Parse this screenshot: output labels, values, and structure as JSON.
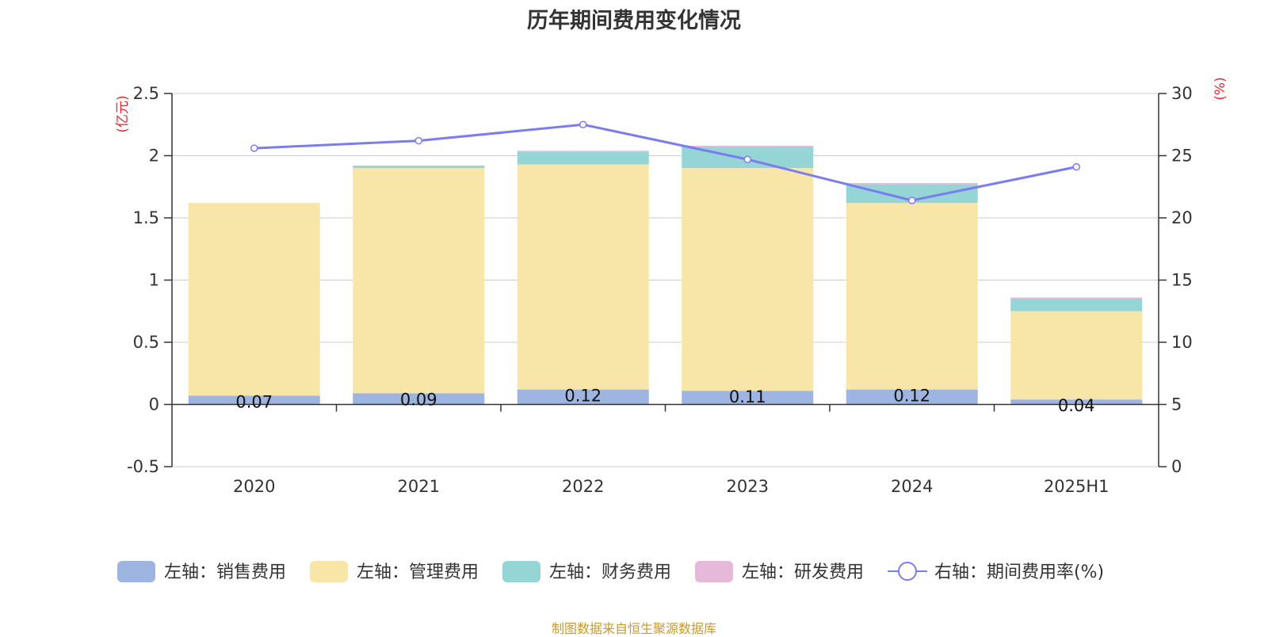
{
  "chart_data": {
    "type": "bar",
    "title": "历年期间费用变化情况",
    "categories": [
      "2020",
      "2021",
      "2022",
      "2023",
      "2024",
      "2025H1"
    ],
    "left_axis": {
      "unit": "(亿元)",
      "ylim": [
        -0.5,
        2.5
      ],
      "ticks": [
        -0.5,
        0,
        0.5,
        1,
        1.5,
        2,
        2.5
      ],
      "tick_labels": [
        "-0.5",
        "0",
        "0.5",
        "1",
        "1.5",
        "2",
        "2.5"
      ]
    },
    "right_axis": {
      "unit": "(%)",
      "ylim": [
        0,
        30
      ],
      "ticks": [
        0,
        5,
        10,
        15,
        20,
        25,
        30
      ],
      "tick_labels": [
        "0",
        "5",
        "10",
        "15",
        "20",
        "25",
        "30"
      ]
    },
    "series": [
      {
        "name": "左轴：销售费用",
        "axis": "left",
        "stack": true,
        "color": "#9db5e0",
        "values": [
          0.07,
          0.09,
          0.12,
          0.11,
          0.12,
          0.04
        ],
        "labels": [
          "0.07",
          "0.09",
          "0.12",
          "0.11",
          "0.12",
          "0.04"
        ]
      },
      {
        "name": "左轴：管理费用",
        "axis": "left",
        "stack": true,
        "color": "#f7e6a7",
        "values": [
          1.55,
          1.81,
          1.81,
          1.79,
          1.5,
          0.71
        ]
      },
      {
        "name": "左轴：财务费用",
        "axis": "left",
        "stack": true,
        "color": "#96d5d6",
        "values": [
          0.0,
          0.02,
          0.1,
          0.17,
          0.15,
          0.1
        ]
      },
      {
        "name": "左轴：研发费用",
        "axis": "left",
        "stack": true,
        "color": "#e6b8da",
        "values": [
          0.0,
          0.0,
          0.01,
          0.01,
          0.01,
          0.01
        ]
      },
      {
        "name": "右轴：期间费用率(%)",
        "axis": "right",
        "type": "line",
        "color": "#7b7cf0",
        "values": [
          25.6,
          26.2,
          27.5,
          24.7,
          21.4,
          24.1
        ]
      }
    ],
    "grid": true,
    "legend_position": "bottom"
  },
  "footer": {
    "source": "制图数据来自恒生聚源数据库"
  }
}
